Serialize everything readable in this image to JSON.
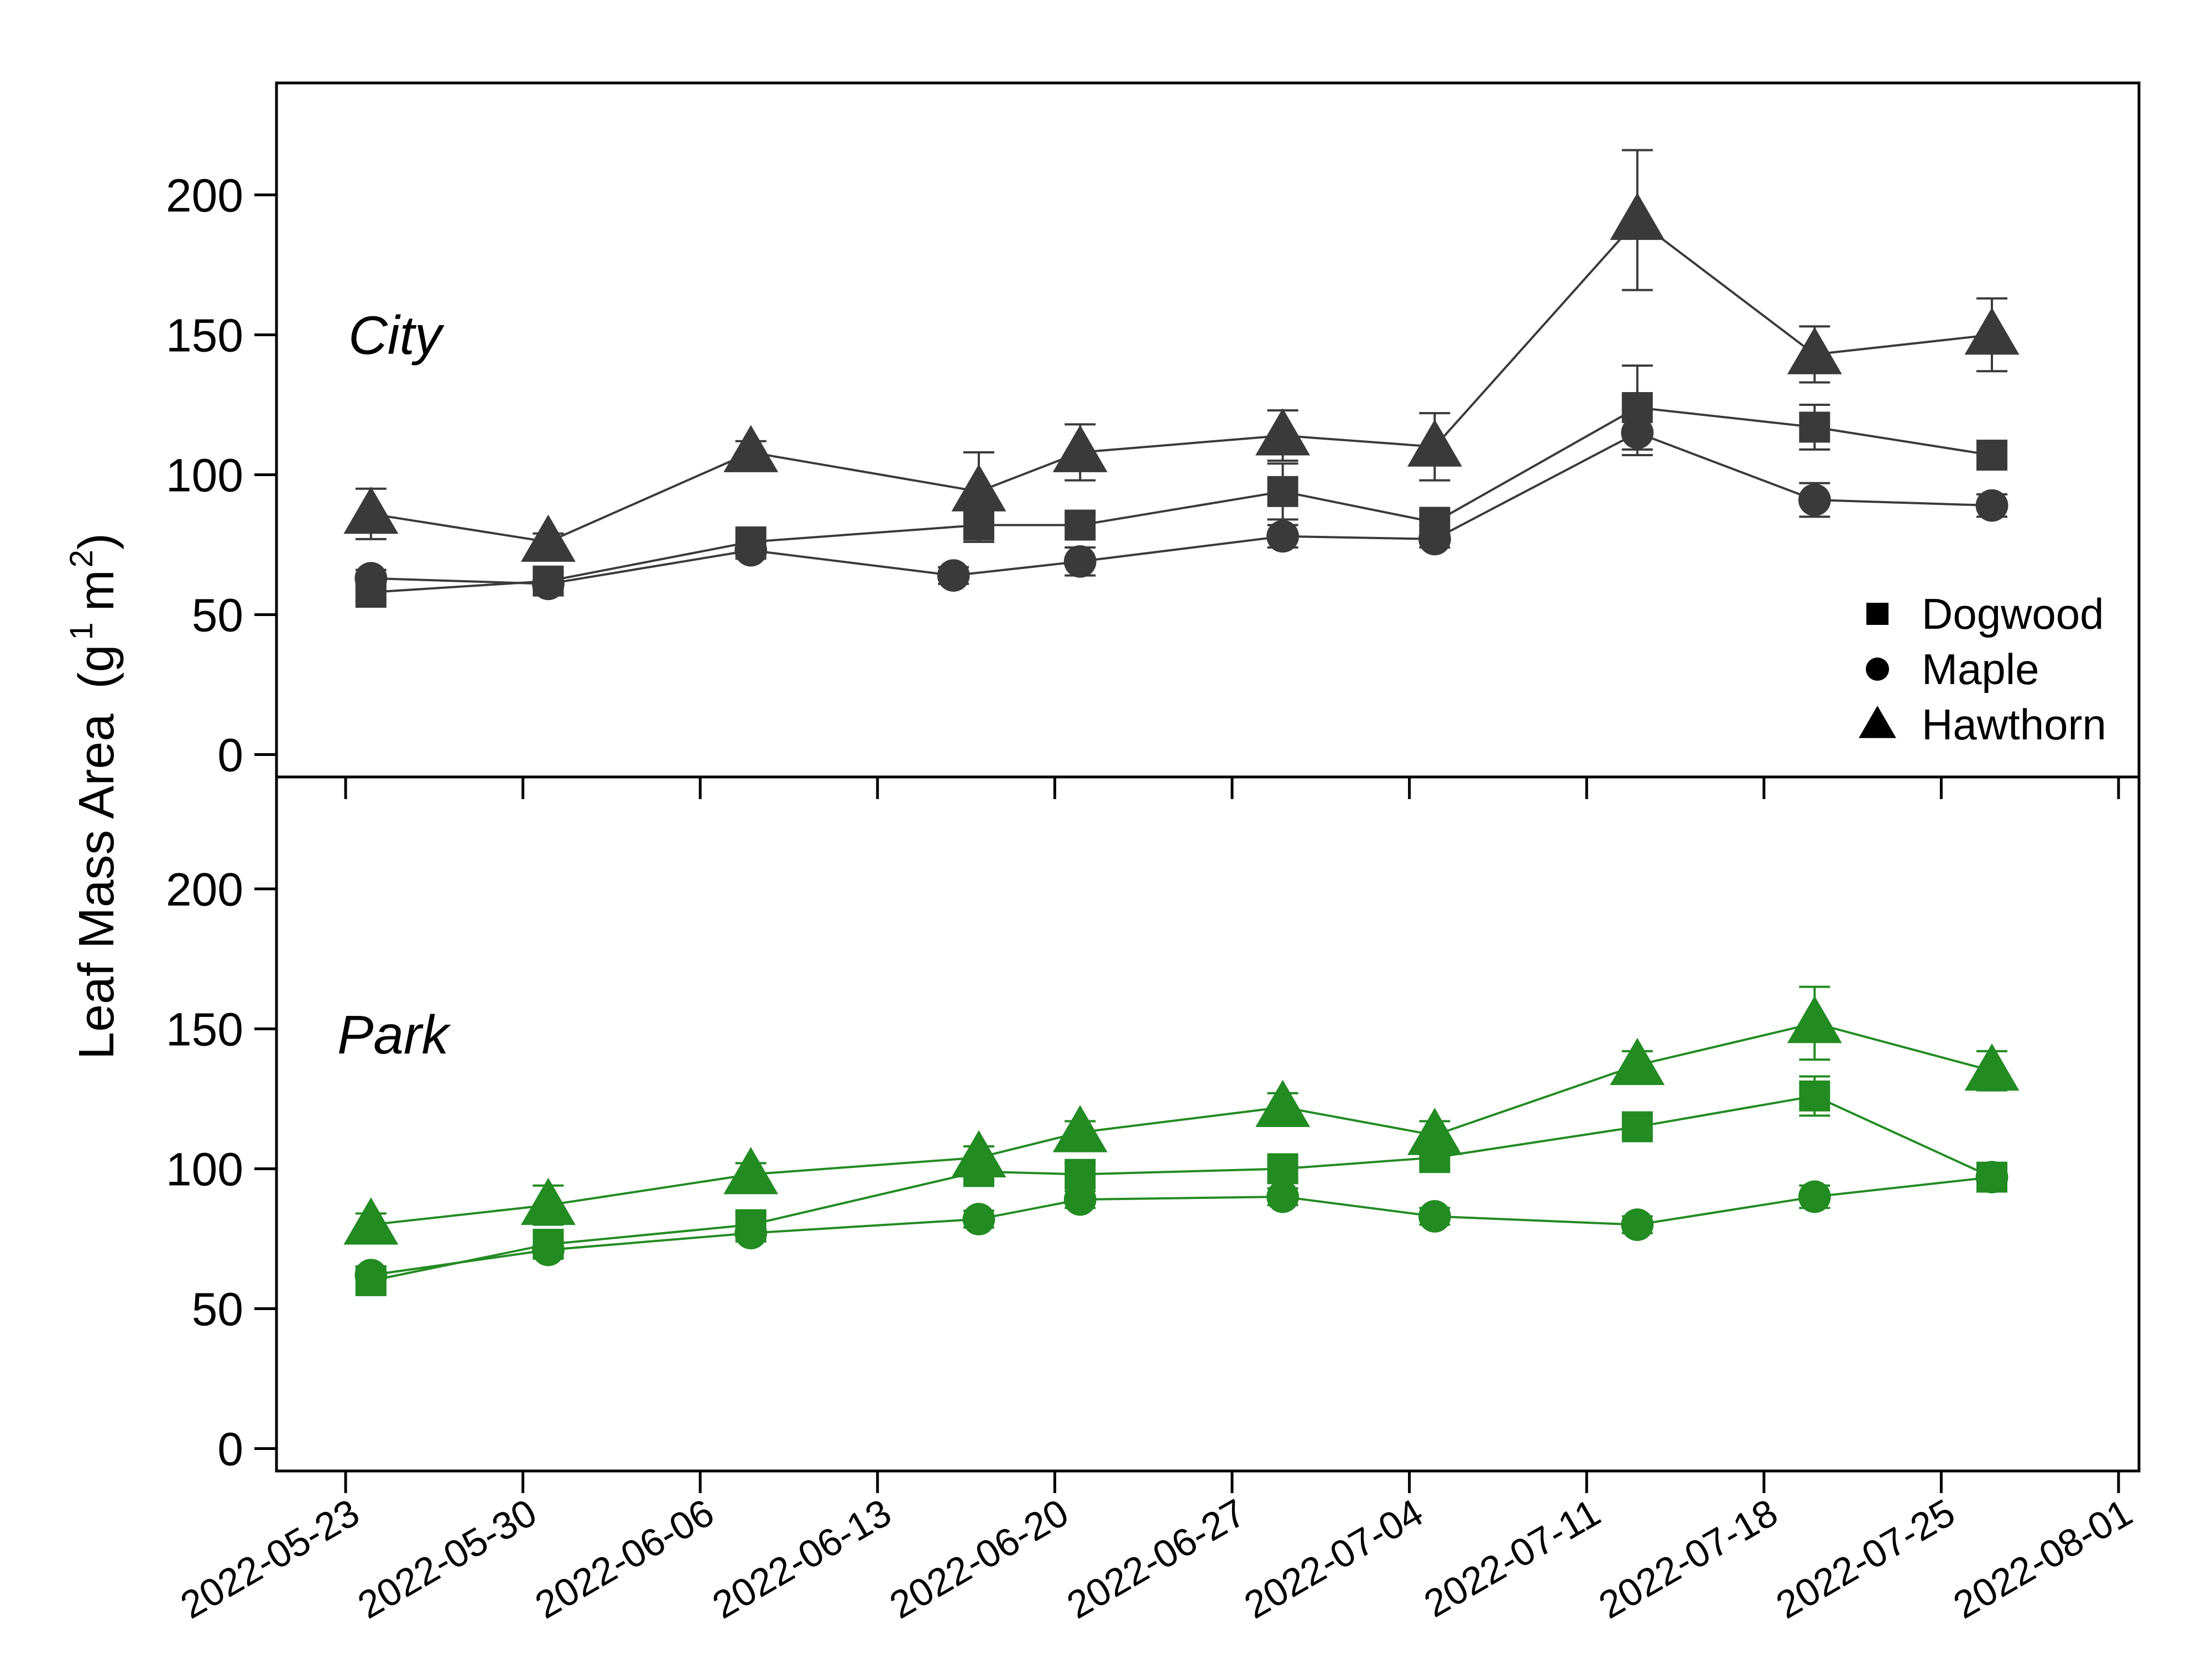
{
  "chart_data": {
    "type": "line",
    "ylabel": {
      "main": "Leaf Mass Area",
      "unit_g": "g",
      "exp1": "1",
      "unit_m": "m",
      "exp2": "2"
    },
    "x_tick_labels": [
      "2022-05-23",
      "2022-05-30",
      "2022-06-06",
      "2022-06-13",
      "2022-06-20",
      "2022-06-27",
      "2022-07-04",
      "2022-07-11",
      "2022-07-18",
      "2022-07-25",
      "2022-08-01"
    ],
    "xlim": [
      "2022-05-19",
      "2022-08-01"
    ],
    "ylim": [
      -8,
      240
    ],
    "y_ticks": [
      0,
      50,
      100,
      150,
      200
    ],
    "legend": {
      "position": "bottom-right of top panel",
      "entries": [
        {
          "label": "Dogwood",
          "marker": "square"
        },
        {
          "label": "Maple",
          "marker": "circle"
        },
        {
          "label": "Hawthorn",
          "marker": "triangle"
        }
      ]
    },
    "panels": [
      {
        "label": "City",
        "color": "#3a3a3a",
        "series": [
          {
            "name": "Dogwood",
            "marker": "square",
            "points": [
              {
                "x": "2022-05-24",
                "y": 58,
                "err": 3
              },
              {
                "x": "2022-05-31",
                "y": 62,
                "err": 3
              },
              {
                "x": "2022-06-08",
                "y": 76,
                "err": 4
              },
              {
                "x": "2022-06-17",
                "y": 82,
                "err": 6
              },
              {
                "x": "2022-06-21",
                "y": 82,
                "err": 4
              },
              {
                "x": "2022-06-29",
                "y": 94,
                "err": 10
              },
              {
                "x": "2022-07-05",
                "y": 83,
                "err": 4
              },
              {
                "x": "2022-07-13",
                "y": 124,
                "err": 15
              },
              {
                "x": "2022-07-20",
                "y": 117,
                "err": 8
              },
              {
                "x": "2022-07-27",
                "y": 107,
                "err": 5
              }
            ]
          },
          {
            "name": "Maple",
            "marker": "circle",
            "points": [
              {
                "x": "2022-05-24",
                "y": 63,
                "err": 3
              },
              {
                "x": "2022-05-31",
                "y": 61,
                "err": 2
              },
              {
                "x": "2022-06-08",
                "y": 73,
                "err": 3
              },
              {
                "x": "2022-06-16",
                "y": 64,
                "err": 3
              },
              {
                "x": "2022-06-21",
                "y": 69,
                "err": 5
              },
              {
                "x": "2022-06-29",
                "y": 78,
                "err": 4
              },
              {
                "x": "2022-07-05",
                "y": 77,
                "err": 3
              },
              {
                "x": "2022-07-13",
                "y": 115,
                "err": 8
              },
              {
                "x": "2022-07-20",
                "y": 91,
                "err": 6
              },
              {
                "x": "2022-07-27",
                "y": 89,
                "err": 4
              }
            ]
          },
          {
            "name": "Hawthorn",
            "marker": "triangle",
            "points": [
              {
                "x": "2022-05-24",
                "y": 86,
                "err": 9
              },
              {
                "x": "2022-05-31",
                "y": 76,
                "err": 3
              },
              {
                "x": "2022-06-08",
                "y": 108,
                "err": 4
              },
              {
                "x": "2022-06-17",
                "y": 94,
                "err": 14
              },
              {
                "x": "2022-06-21",
                "y": 108,
                "err": 10
              },
              {
                "x": "2022-06-29",
                "y": 114,
                "err": 9
              },
              {
                "x": "2022-07-05",
                "y": 110,
                "err": 12
              },
              {
                "x": "2022-07-13",
                "y": 191,
                "err": 25
              },
              {
                "x": "2022-07-20",
                "y": 143,
                "err": 10
              },
              {
                "x": "2022-07-27",
                "y": 150,
                "err": 13
              }
            ]
          }
        ]
      },
      {
        "label": "Park",
        "color": "#228b22",
        "series": [
          {
            "name": "Dogwood",
            "marker": "square",
            "points": [
              {
                "x": "2022-05-24",
                "y": 60,
                "err": 3
              },
              {
                "x": "2022-05-31",
                "y": 73,
                "err": 4
              },
              {
                "x": "2022-06-08",
                "y": 80,
                "err": 4
              },
              {
                "x": "2022-06-17",
                "y": 99,
                "err": 5
              },
              {
                "x": "2022-06-21",
                "y": 98,
                "err": 4
              },
              {
                "x": "2022-06-29",
                "y": 100,
                "err": 4
              },
              {
                "x": "2022-07-05",
                "y": 104,
                "err": 4
              },
              {
                "x": "2022-07-13",
                "y": 115,
                "err": 4
              },
              {
                "x": "2022-07-20",
                "y": 126,
                "err": 7
              },
              {
                "x": "2022-07-27",
                "y": 97,
                "err": 3
              }
            ]
          },
          {
            "name": "Maple",
            "marker": "circle",
            "points": [
              {
                "x": "2022-05-24",
                "y": 62,
                "err": 3
              },
              {
                "x": "2022-05-31",
                "y": 71,
                "err": 3
              },
              {
                "x": "2022-06-08",
                "y": 77,
                "err": 3
              },
              {
                "x": "2022-06-17",
                "y": 82,
                "err": 3
              },
              {
                "x": "2022-06-21",
                "y": 89,
                "err": 3
              },
              {
                "x": "2022-06-29",
                "y": 90,
                "err": 3
              },
              {
                "x": "2022-07-05",
                "y": 83,
                "err": 3
              },
              {
                "x": "2022-07-13",
                "y": 80,
                "err": 3
              },
              {
                "x": "2022-07-20",
                "y": 90,
                "err": 4
              },
              {
                "x": "2022-07-27",
                "y": 97,
                "err": 3
              }
            ]
          },
          {
            "name": "Hawthorn",
            "marker": "triangle",
            "points": [
              {
                "x": "2022-05-24",
                "y": 80,
                "err": 4
              },
              {
                "x": "2022-05-31",
                "y": 87,
                "err": 7
              },
              {
                "x": "2022-06-08",
                "y": 98,
                "err": 4
              },
              {
                "x": "2022-06-17",
                "y": 104,
                "err": 4
              },
              {
                "x": "2022-06-21",
                "y": 113,
                "err": 4
              },
              {
                "x": "2022-06-29",
                "y": 122,
                "err": 5
              },
              {
                "x": "2022-07-05",
                "y": 112,
                "err": 5
              },
              {
                "x": "2022-07-13",
                "y": 137,
                "err": 5
              },
              {
                "x": "2022-07-20",
                "y": 152,
                "err": 13
              },
              {
                "x": "2022-07-27",
                "y": 135,
                "err": 7
              }
            ]
          }
        ]
      }
    ]
  }
}
